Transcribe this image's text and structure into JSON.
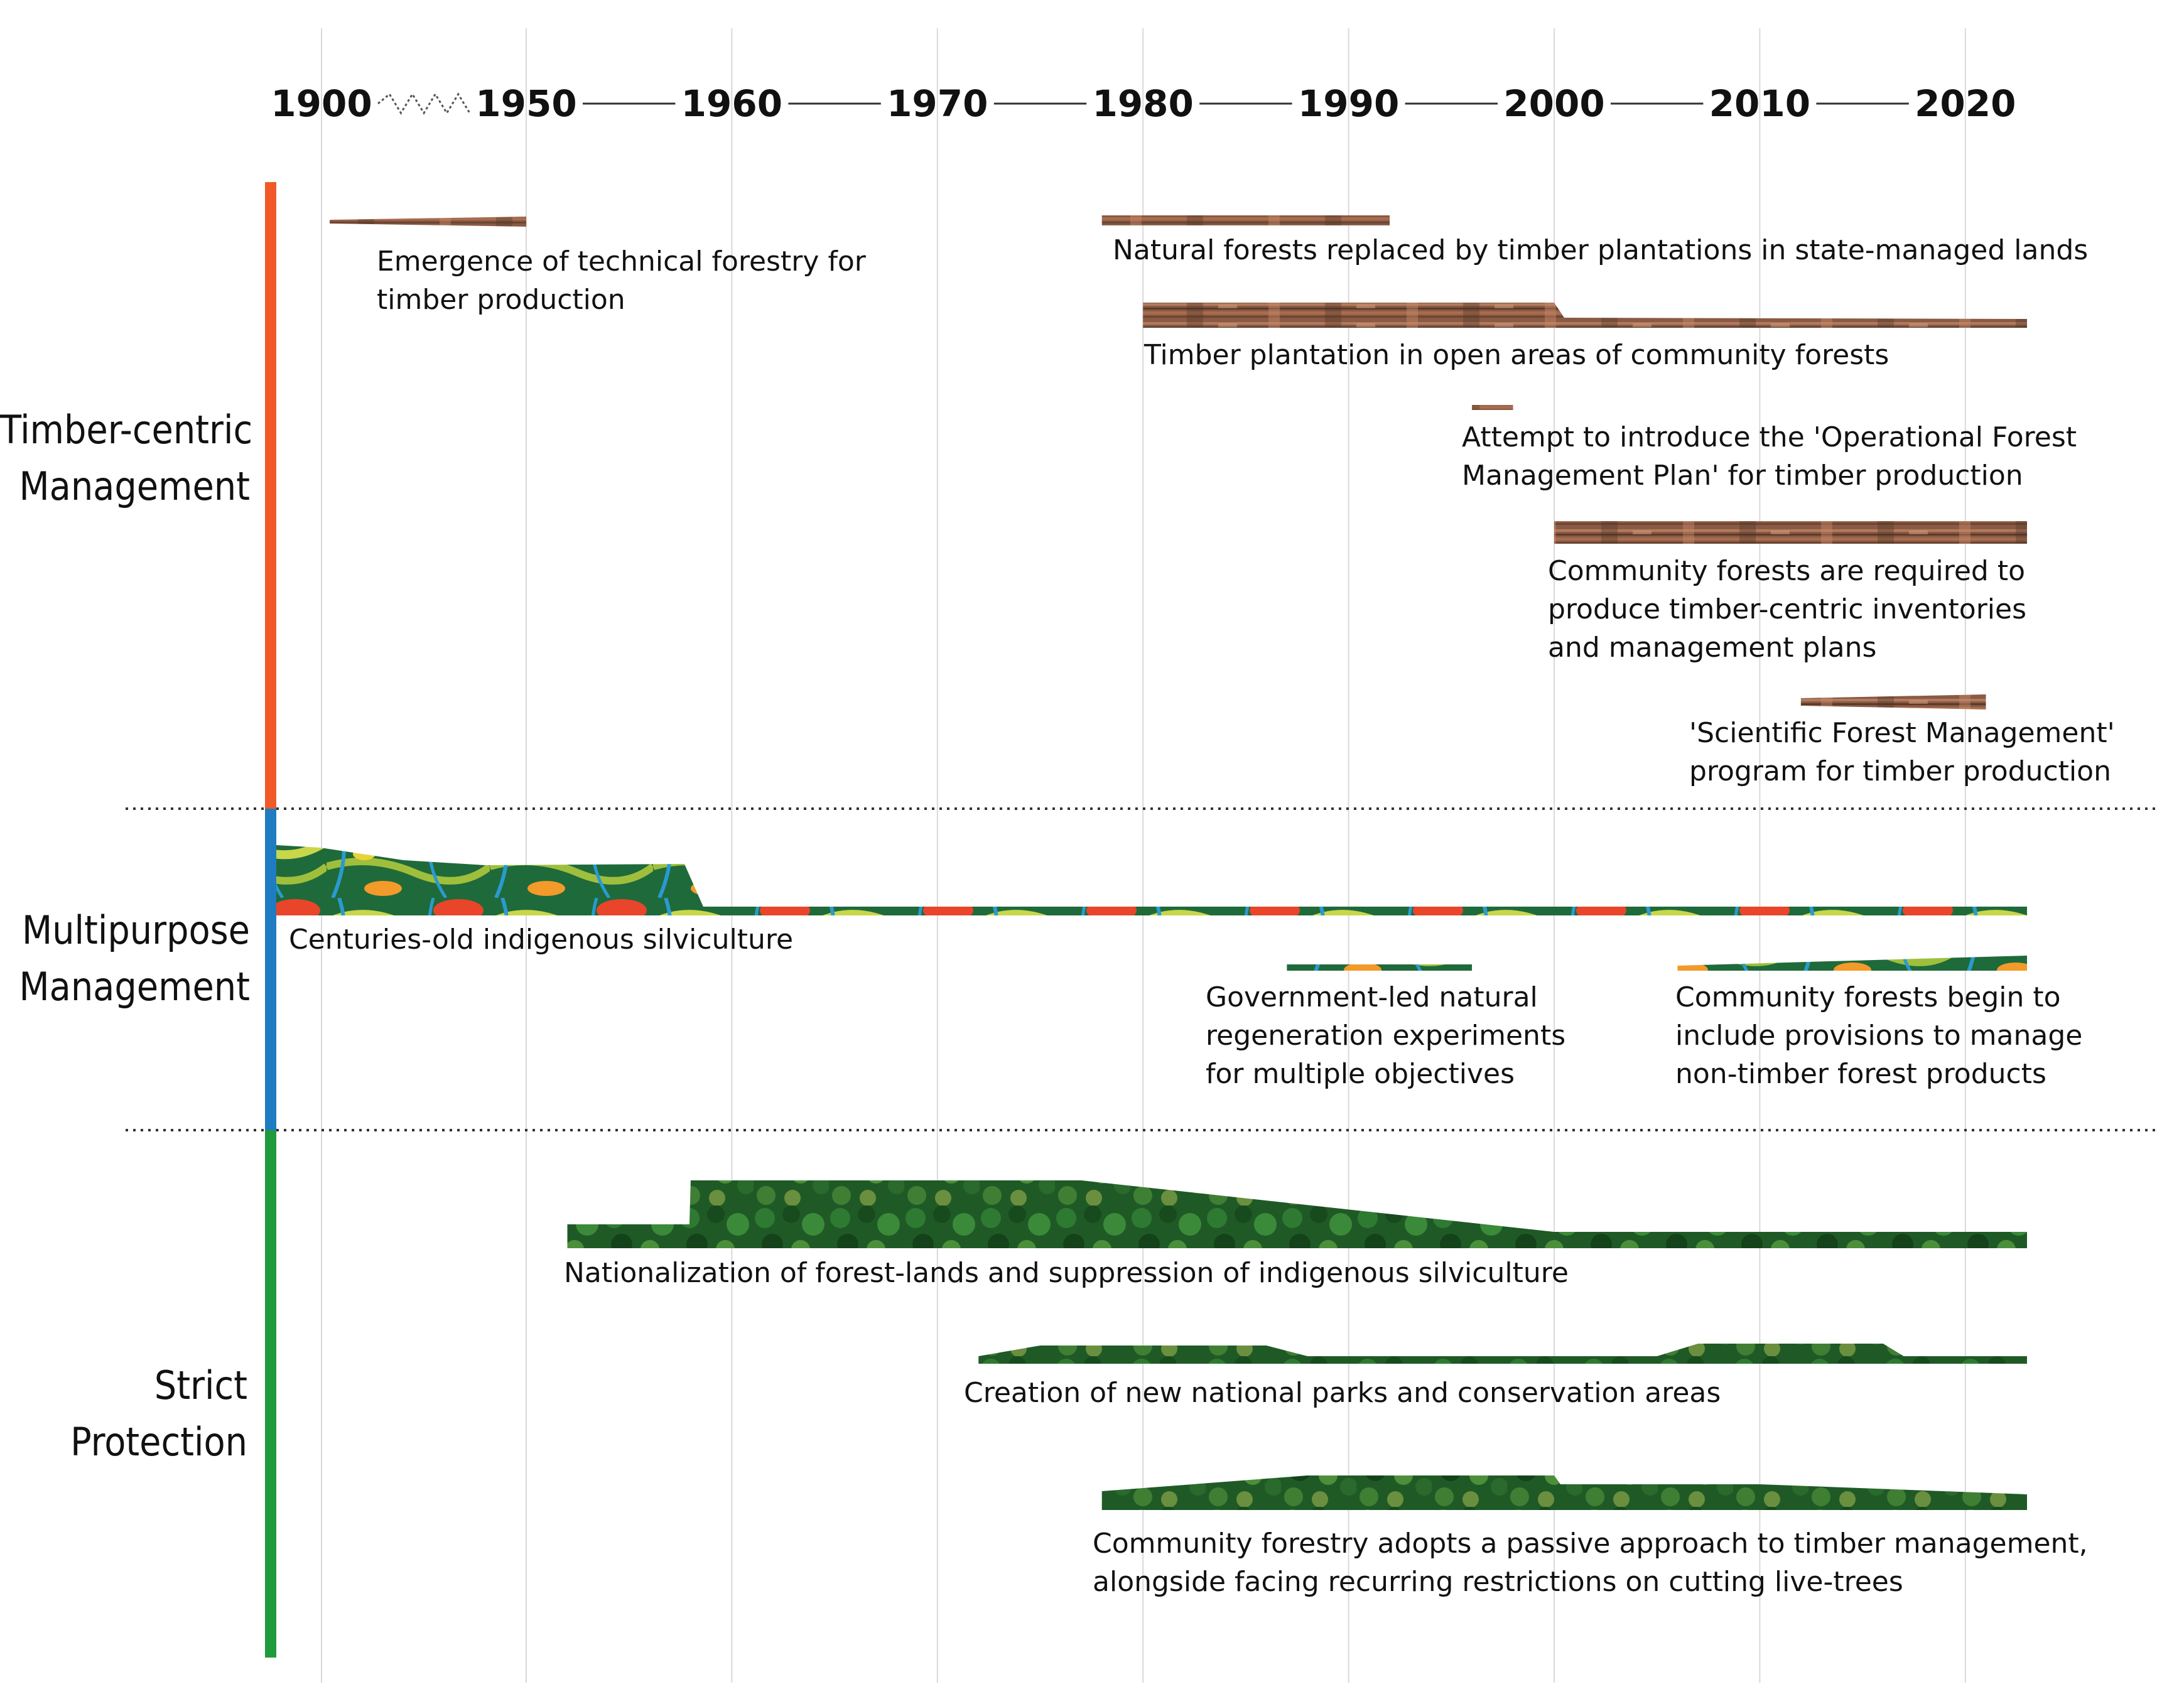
{
  "axis": {
    "years": [
      "1900",
      "1950",
      "1960",
      "1970",
      "1980",
      "1990",
      "2000",
      "2010",
      "2020"
    ]
  },
  "categories": [
    {
      "key": "timber",
      "label_line1": "Timber-centric",
      "label_line2": "Management",
      "color": "#f05a28"
    },
    {
      "key": "multi",
      "label_line1": "Multipurpose",
      "label_line2": "Management",
      "color": "#1f7cc1"
    },
    {
      "key": "strict",
      "label_line1": "Strict",
      "label_line2": "Protection",
      "color": "#1f9a3c"
    }
  ],
  "events": {
    "technical_forestry": {
      "line1": "Emergence of technical forestry for",
      "line2": "timber production",
      "start": 1902,
      "end": 1950
    },
    "natural_replaced": {
      "line1": "Natural forests replaced by timber plantations in state-managed lands",
      "start": 1978,
      "end": 1992
    },
    "open_areas": {
      "line1": "Timber plantation in open areas of community forests",
      "start": 1980,
      "end": 2023
    },
    "operational_plan": {
      "line1": "Attempt to introduce the 'Operational Forest",
      "line2": "Management Plan' for timber production",
      "start": 1996,
      "end": 1998
    },
    "inventories": {
      "line1": "Community forests are required to",
      "line2": "produce timber-centric inventories",
      "line3": "and management plans",
      "start": 2000,
      "end": 2023
    },
    "scientific_mgmt": {
      "line1": "'Scientific Forest Management'",
      "line2": "program for timber production",
      "start": 2012,
      "end": 2021
    },
    "indigenous": {
      "line1": "Centuries-old indigenous silviculture",
      "start": 1898,
      "end": 2023
    },
    "regeneration": {
      "line1": "Government-led natural",
      "line2": "regeneration experiments",
      "line3": "for multiple objectives",
      "start": 1987,
      "end": 1996
    },
    "ntfp": {
      "line1": "Community forests begin to",
      "line2": "include provisions to manage",
      "line3": "non-timber forest products",
      "start": 2006,
      "end": 2023
    },
    "nationalization": {
      "line1": "Nationalization of forest-lands and suppression of indigenous silviculture",
      "start": 1952,
      "end": 2023
    },
    "national_parks": {
      "line1": "Creation of new national parks and conservation areas",
      "start": 1972,
      "end": 2023
    },
    "passive_approach": {
      "line1": "Community forestry adopts a passive approach to timber management,",
      "line2": "alongside facing recurring restrictions on cutting live-trees",
      "start": 1978,
      "end": 2023
    }
  }
}
